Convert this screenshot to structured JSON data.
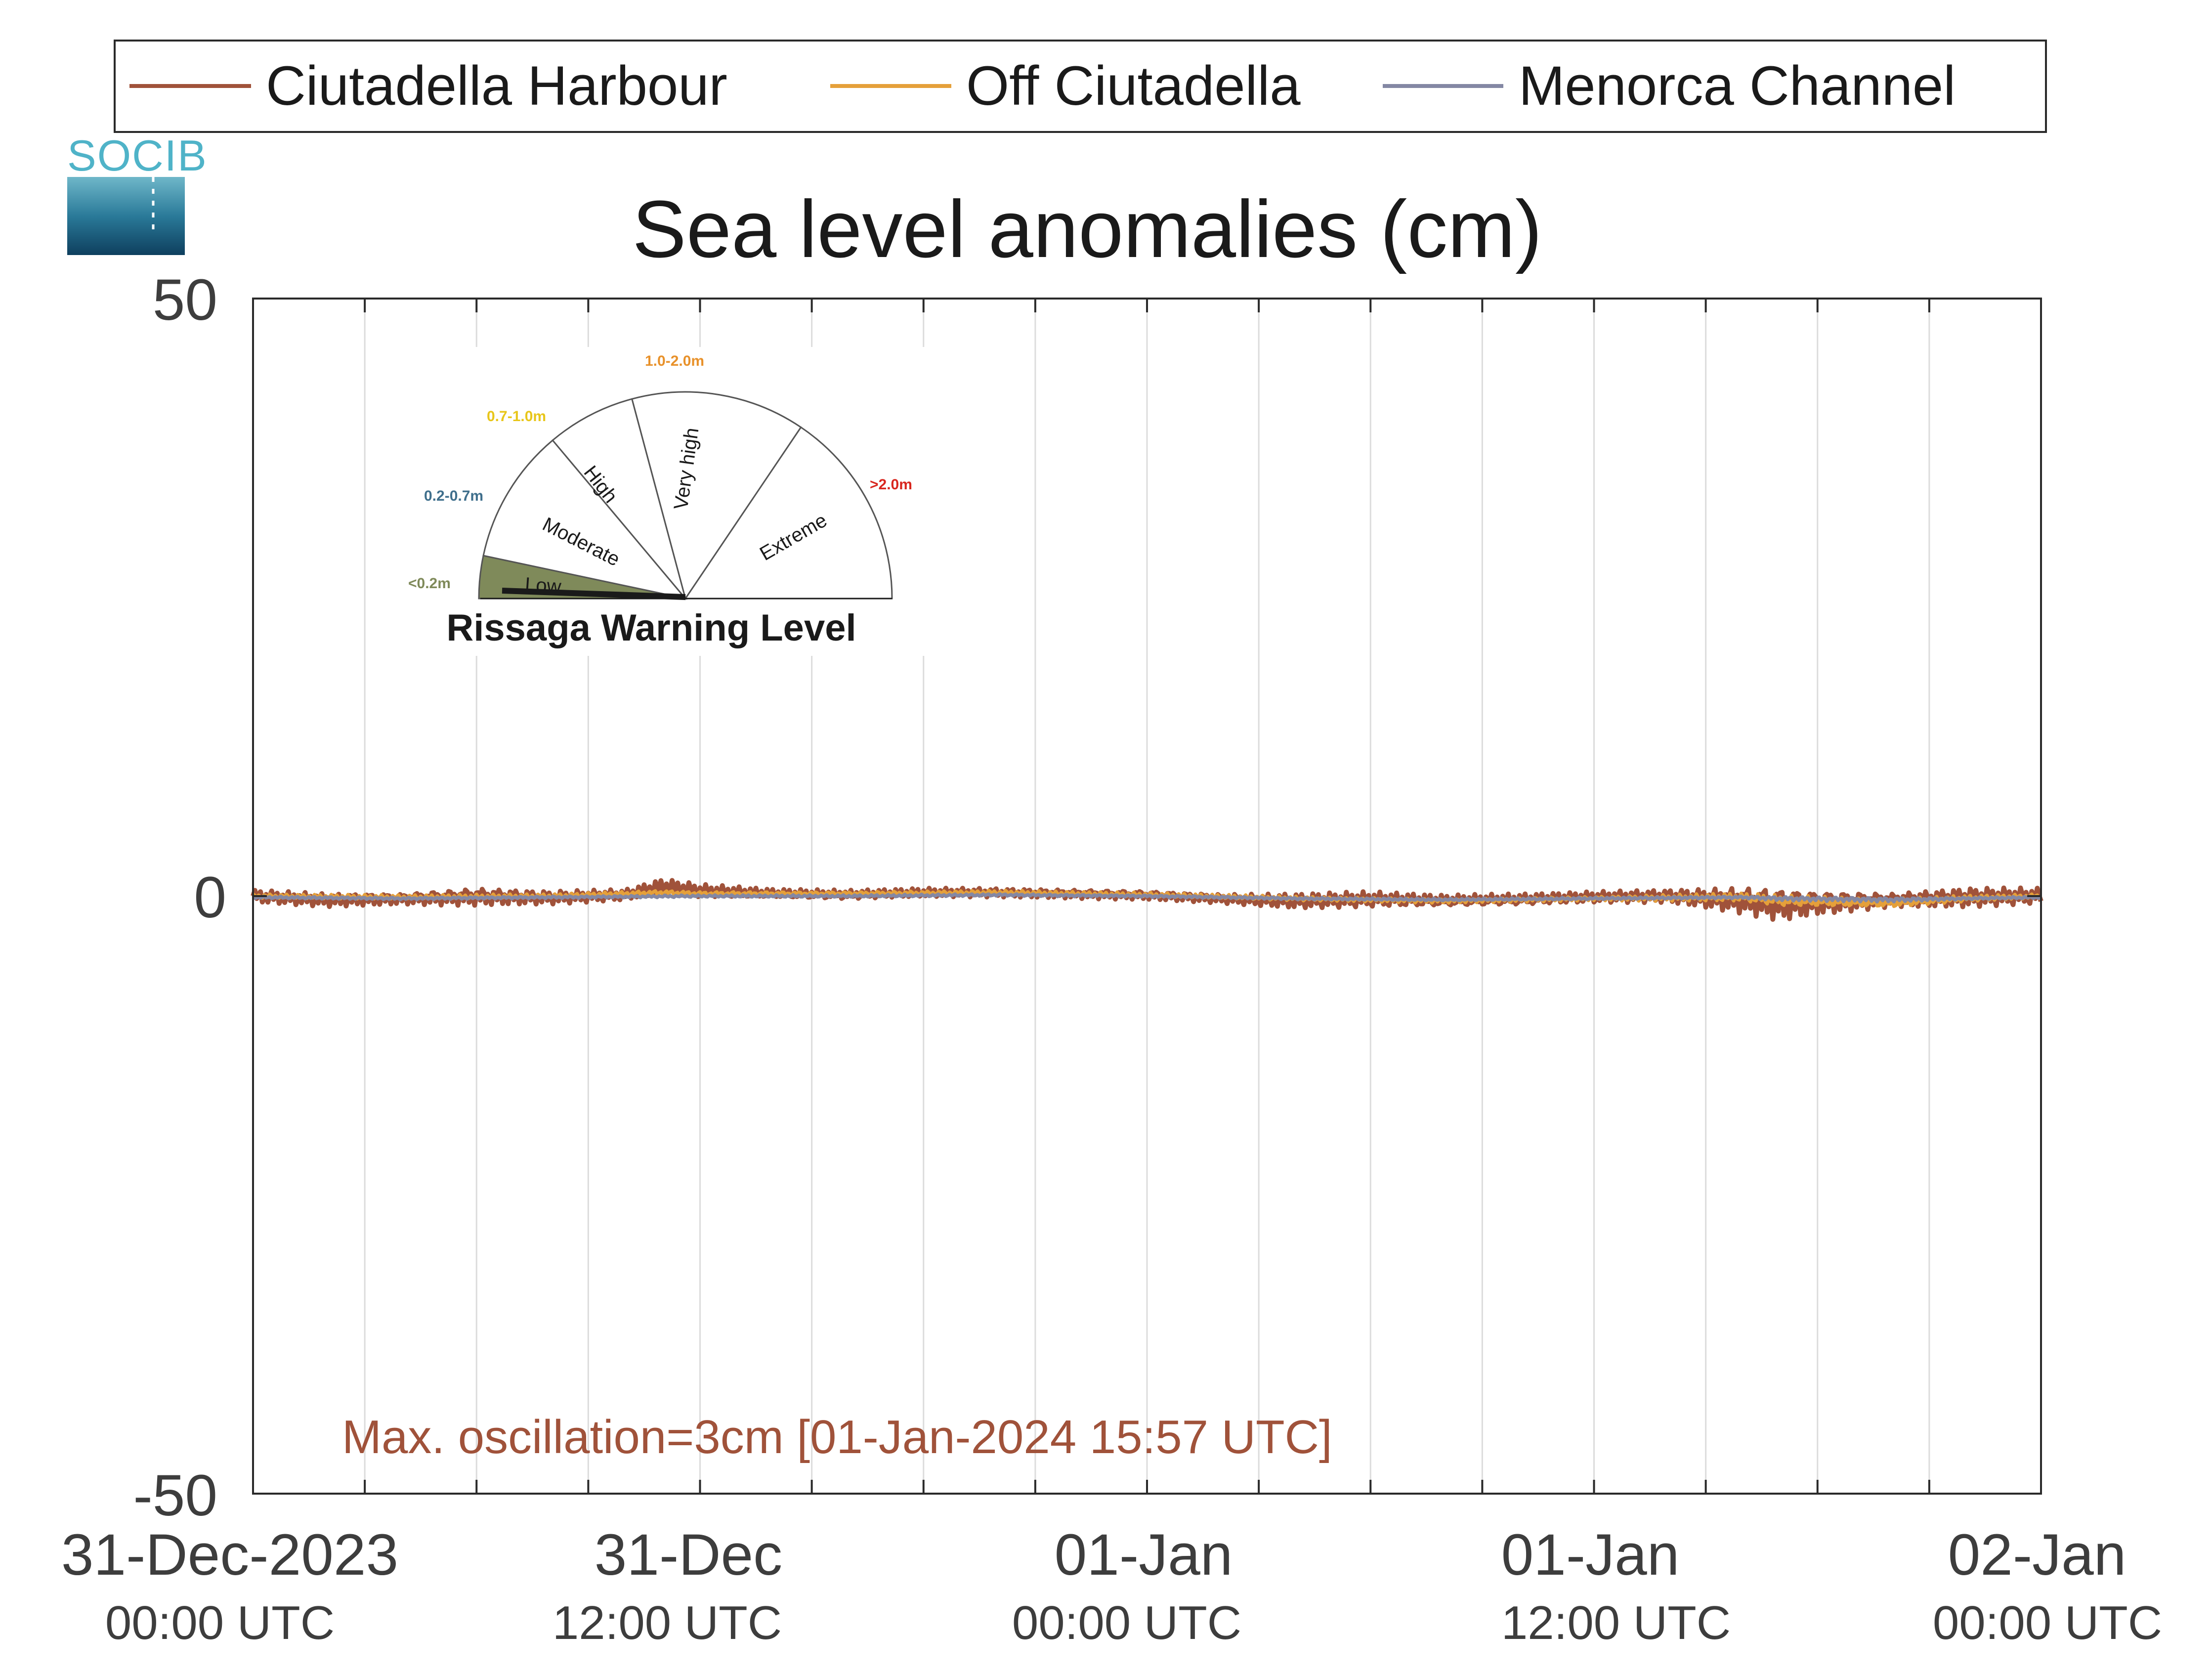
{
  "logo": {
    "text": "SOCIB",
    "color": "#4fb3c8"
  },
  "chart_data": {
    "type": "line",
    "title": "Sea level anomalies (cm)",
    "xlabel": "",
    "ylabel": "",
    "ylim": [
      -50,
      50
    ],
    "yticks": [
      {
        "value": 50,
        "label": "50"
      },
      {
        "value": 0,
        "label": "0"
      },
      {
        "value": -50,
        "label": "-50"
      }
    ],
    "xlim_hours": [
      0,
      48
    ],
    "xticks": [
      {
        "hour": 0,
        "date": "31-Dec-2023",
        "time": "00:00 UTC"
      },
      {
        "hour": 12,
        "date": "31-Dec",
        "time": "12:00 UTC"
      },
      {
        "hour": 24,
        "date": "01-Jan",
        "time": "00:00 UTC"
      },
      {
        "hour": 36,
        "date": "01-Jan",
        "time": "12:00 UTC"
      },
      {
        "hour": 48,
        "date": "02-Jan",
        "time": "00:00 UTC"
      }
    ],
    "grid": "vertical, every 3 hours",
    "legend_position": "top, outside plot",
    "series": [
      {
        "name": "Ciutadella Harbour",
        "color": "#a0523a",
        "x_hours": [
          0,
          2,
          4,
          6,
          8,
          10,
          11,
          12,
          14,
          16,
          18,
          20,
          22,
          24,
          26,
          28,
          30,
          32,
          34,
          36,
          38,
          40,
          41,
          42,
          44,
          46,
          48
        ],
        "values": [
          0,
          -0.3,
          -0.2,
          0,
          -0.1,
          0.1,
          0.8,
          0.4,
          0.2,
          0.1,
          0.3,
          0.3,
          0.2,
          0.1,
          -0.2,
          -0.4,
          -0.3,
          -0.4,
          -0.3,
          -0.1,
          0,
          -0.3,
          -0.6,
          -0.5,
          -0.3,
          -0.1,
          0
        ],
        "oscillation_amplitude": [
          0.6,
          0.6,
          0.5,
          0.8,
          0.6,
          0.5,
          0.7,
          0.6,
          0.4,
          0.4,
          0.4,
          0.4,
          0.4,
          0.4,
          0.4,
          0.7,
          0.7,
          0.5,
          0.5,
          0.5,
          0.6,
          1.2,
          1.5,
          1.1,
          0.6,
          0.9,
          0.7
        ]
      },
      {
        "name": "Off Ciutadella",
        "color": "#e5a03a",
        "x_hours": [
          0,
          4,
          8,
          11,
          12,
          16,
          20,
          24,
          28,
          32,
          36,
          40,
          41,
          44,
          46,
          48
        ],
        "values": [
          0,
          -0.1,
          0,
          0.3,
          0.2,
          0.2,
          0.3,
          0.1,
          -0.2,
          -0.4,
          -0.2,
          -0.1,
          -0.4,
          -0.6,
          -0.2,
          0
        ],
        "oscillation_amplitude": [
          0.2,
          0.2,
          0.2,
          0.2,
          0.2,
          0.2,
          0.2,
          0.2,
          0.2,
          0.2,
          0.2,
          0.4,
          0.5,
          0.4,
          0.3,
          0.2
        ]
      },
      {
        "name": "Menorca Channel",
        "color": "#8488a4",
        "x_hours": [
          0,
          4,
          8,
          12,
          16,
          20,
          24,
          28,
          32,
          36,
          40,
          41,
          44,
          46,
          48
        ],
        "values": [
          -0.1,
          -0.2,
          -0.1,
          0,
          0,
          0.1,
          0,
          -0.2,
          -0.3,
          -0.2,
          -0.1,
          -0.2,
          -0.3,
          -0.2,
          -0.1
        ],
        "oscillation_amplitude": [
          0.1,
          0.1,
          0.1,
          0.1,
          0.1,
          0.1,
          0.1,
          0.1,
          0.1,
          0.1,
          0.1,
          0.2,
          0.2,
          0.1,
          0.1
        ]
      }
    ],
    "annotation": {
      "text": "Max. oscillation=3cm [01-Jan-2024 15:57 UTC]",
      "color": "#a0523a"
    }
  },
  "gauge": {
    "title": "Rissaga Warning Level",
    "needle_level": "Low",
    "levels": [
      {
        "label": "Low",
        "range": "<0.2m",
        "range_color": "#7f8a5a",
        "fill": "#7f8a5a"
      },
      {
        "label": "Moderate",
        "range": "0.2-0.7m",
        "range_color": "#3f6f8c",
        "fill": "#ffffff"
      },
      {
        "label": "High",
        "range": "0.7-1.0m",
        "range_color": "#e8c61a",
        "fill": "#ffffff"
      },
      {
        "label": "Very high",
        "range": "1.0-2.0m",
        "range_color": "#e8912a",
        "fill": "#ffffff"
      },
      {
        "label": "Extreme",
        "range": ">2.0m",
        "range_color": "#d8261e",
        "fill": "#ffffff"
      }
    ]
  }
}
